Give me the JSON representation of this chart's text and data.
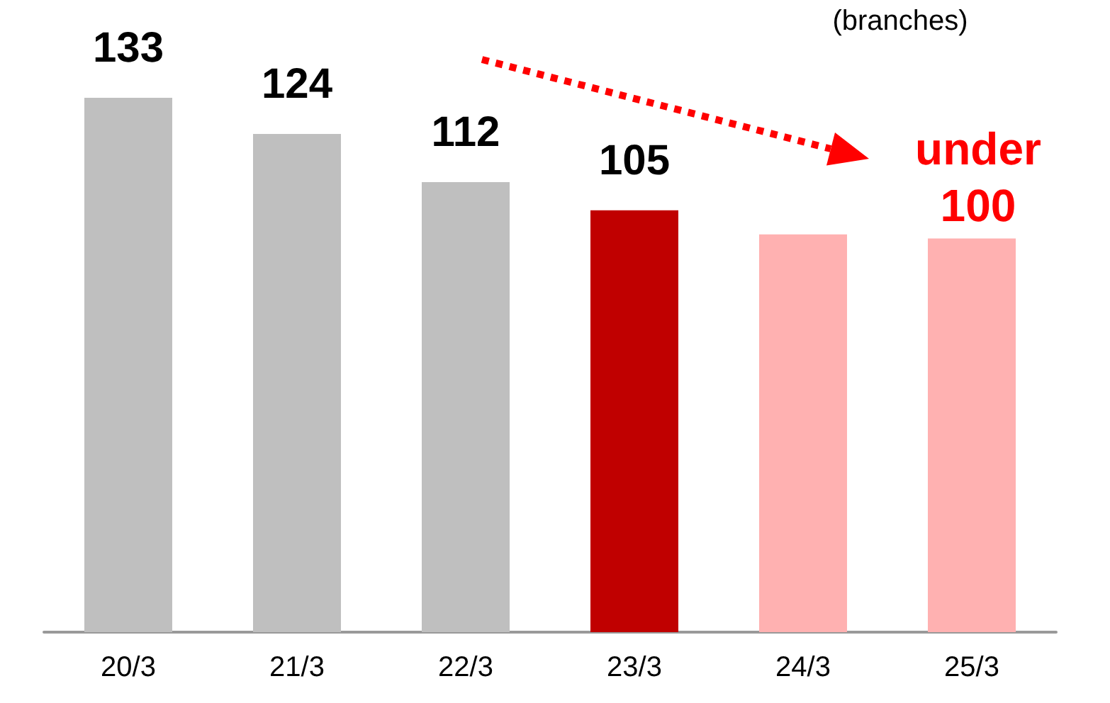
{
  "chart_data": {
    "type": "bar",
    "categories": [
      "20/3",
      "21/3",
      "22/3",
      "23/3",
      "24/3",
      "25/3"
    ],
    "values": [
      133,
      124,
      112,
      105,
      99,
      98
    ],
    "colors": [
      "#bfbfbf",
      "#bfbfbf",
      "#bfbfbf",
      "#c00000",
      "#ffb1b1",
      "#ffb1b1"
    ],
    "value_labels": [
      "133",
      "124",
      "112",
      "105",
      null,
      null
    ],
    "annotations": [
      "(branches)",
      "under 100"
    ]
  }
}
